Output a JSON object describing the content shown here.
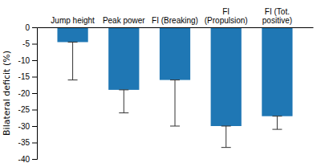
{
  "chart_data": {
    "type": "bar",
    "categories": [
      "Jump height",
      "Peak power",
      "FI (Breaking)",
      "FI (Propulsion)",
      "FI (Tot. positive)"
    ],
    "values": [
      -4.5,
      -19.0,
      -16.0,
      -30.0,
      -27.0
    ],
    "error_lower": [
      -16.0,
      -26.0,
      -30.0,
      -36.5,
      -31.0
    ],
    "ylabel": "Bilateral deficit (%)",
    "ylim": [
      -40,
      0
    ],
    "yticks": [
      0,
      -5,
      -10,
      -15,
      -20,
      -25,
      -30,
      -35,
      -40
    ]
  }
}
